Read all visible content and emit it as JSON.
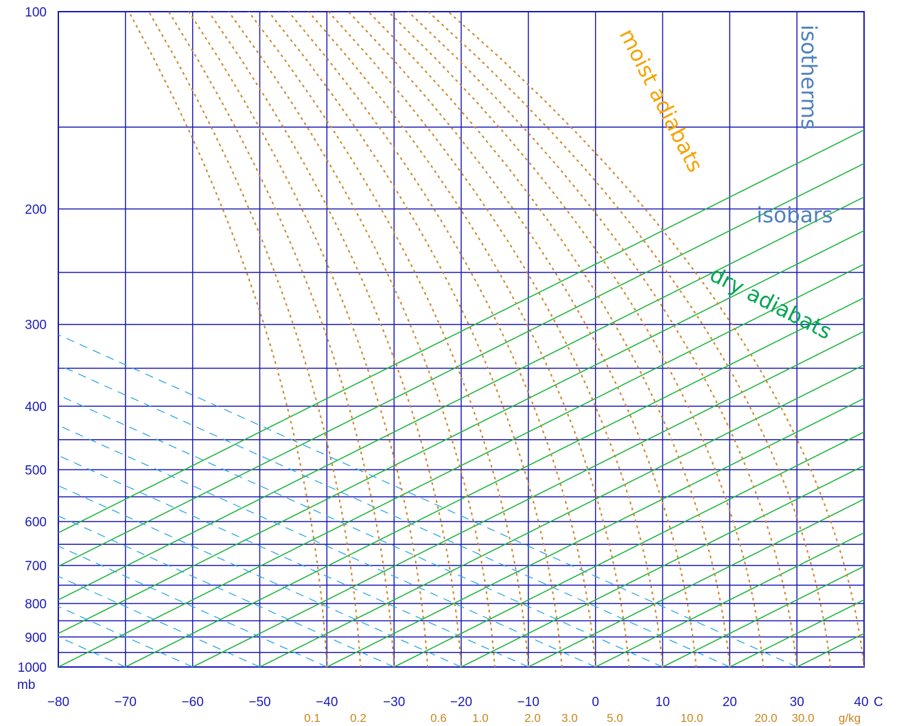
{
  "chart_data": {
    "type": "line",
    "chart_kind": "skew-T log-P thermodynamic diagram",
    "x_axis": {
      "unit_label": "C",
      "ticks": [
        -80,
        -70,
        -60,
        -50,
        -40,
        -30,
        -20,
        -10,
        0,
        10,
        20,
        30,
        40
      ],
      "tick_labels": [
        "−80",
        "−70",
        "−60",
        "−50",
        "−40",
        "−30",
        "−20",
        "−10",
        "0",
        "10",
        "20",
        "30",
        "40"
      ],
      "xlim": [
        -80,
        40
      ]
    },
    "y_axis": {
      "unit_label": "mb",
      "scale": "log",
      "inverted": true,
      "ticks": [
        100,
        200,
        300,
        400,
        500,
        600,
        700,
        800,
        900,
        1000
      ],
      "tick_labels": [
        "100",
        "200",
        "300",
        "400",
        "500",
        "600",
        "700",
        "800",
        "900",
        "1000"
      ],
      "ylim": [
        1000,
        100
      ]
    },
    "mixing_ratio_axis": {
      "unit_label": "g/kg",
      "labels": [
        "0.1",
        "0.2",
        "0.6",
        "1.0",
        "2.0",
        "3.0",
        "5.0",
        "10.0",
        "20.0",
        "30.0"
      ]
    },
    "series": [
      {
        "role": "isobars",
        "color": "#1a1ab8",
        "style": "solid",
        "levels_mb": [
          100,
          150,
          200,
          250,
          300,
          350,
          400,
          450,
          500,
          550,
          600,
          650,
          700,
          750,
          800,
          850,
          900,
          950,
          1000
        ]
      },
      {
        "role": "isotherms",
        "color": "#1a1ab8",
        "style": "solid vertical",
        "values_C": [
          -80,
          -70,
          -60,
          -50,
          -40,
          -30,
          -20,
          -10,
          0,
          10,
          20,
          30,
          40
        ]
      },
      {
        "role": "dry adiabats",
        "color": "#1eb43c",
        "style": "solid",
        "surface_temps_C": [
          -120,
          -110,
          -100,
          -90,
          -80,
          -70,
          -60,
          -50,
          -40,
          -30,
          -20,
          -10,
          0,
          10,
          20,
          30,
          40,
          50,
          60,
          70,
          80,
          90,
          100,
          110
        ]
      },
      {
        "role": "moist adiabats",
        "color": "#cd8a2c",
        "style": "dotted",
        "surface_temps_C": [
          -40,
          -35,
          -30,
          -25,
          -20,
          -15,
          -10,
          -5,
          0,
          5,
          10,
          15,
          20,
          25,
          30,
          35,
          40
        ]
      },
      {
        "role": "mixing ratio lines",
        "color": "#2aa5e6",
        "style": "dashed",
        "anchor_temps_at_1000mb_C": [
          -70,
          -60,
          -50,
          -40,
          -30,
          -20,
          -10,
          0,
          10,
          20,
          30
        ]
      }
    ],
    "annotations": [
      {
        "text": "isotherms",
        "color": "#4f81bd"
      },
      {
        "text": "isobars",
        "color": "#4f81bd"
      },
      {
        "text": "moist adiabats",
        "color": "#f5a300"
      },
      {
        "text": "dry adiabats",
        "color": "#00a650"
      }
    ]
  }
}
